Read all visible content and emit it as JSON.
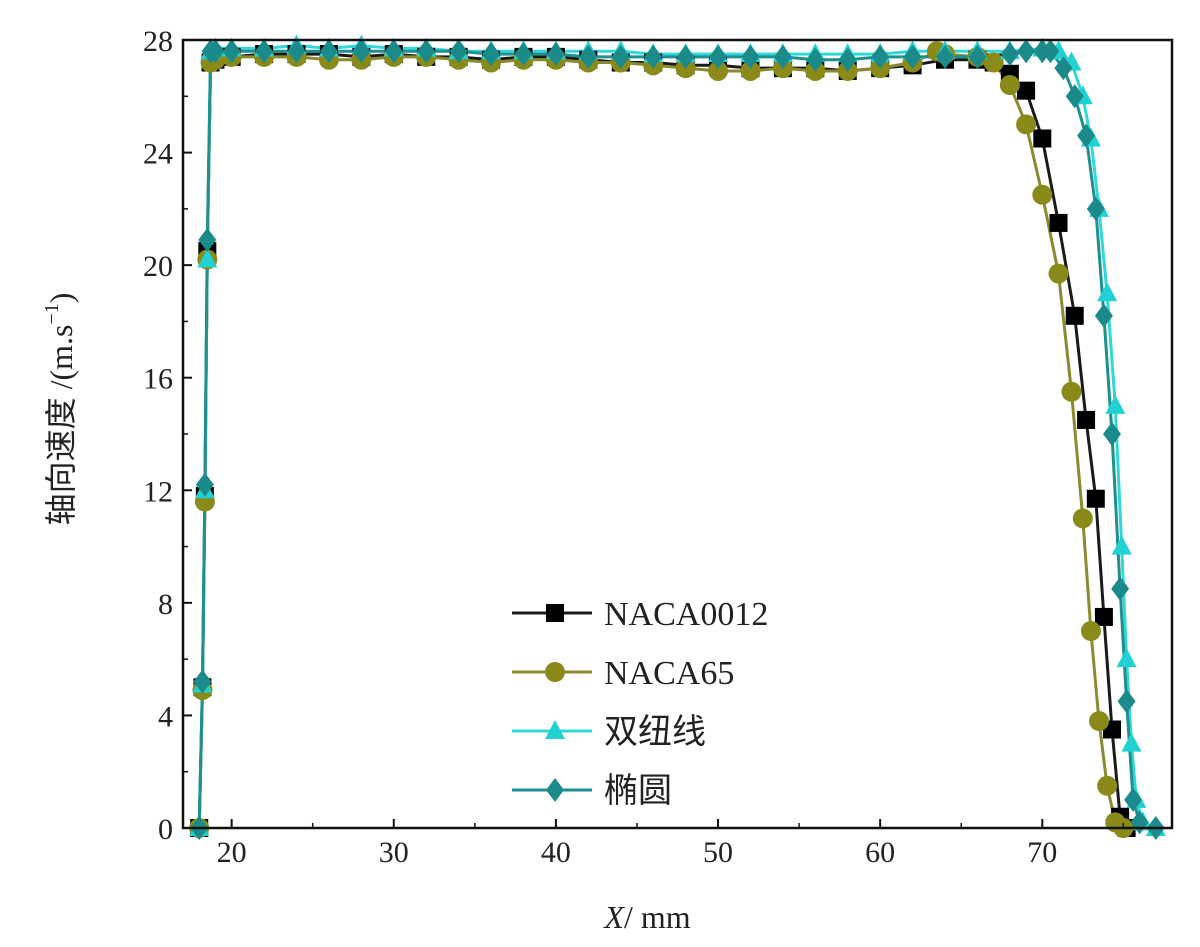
{
  "chart_data": {
    "type": "line",
    "xlabel": "X/ mm",
    "xlabel_italic": "X",
    "xlabel_unit": "/ mm",
    "ylabel": "轴向速度 /(m·s⁻¹)",
    "ylabel_text": "轴向速度 /(m.s",
    "ylabel_sup": "−1",
    "ylabel_close": ")",
    "xlim": [
      17,
      78
    ],
    "ylim": [
      0,
      28
    ],
    "xticks": [
      20,
      30,
      40,
      50,
      60,
      70
    ],
    "yticks": [
      0,
      4,
      8,
      12,
      16,
      20,
      24,
      28
    ],
    "grid": false,
    "legend_position": "lower-center",
    "series": [
      {
        "name": "NACA0012",
        "color": "#000000",
        "line_color": "#1a1a1a",
        "marker": "square",
        "points": [
          [
            18.0,
            0
          ],
          [
            18.2,
            5
          ],
          [
            18.35,
            11.8
          ],
          [
            18.5,
            20.5
          ],
          [
            18.7,
            27.2
          ],
          [
            19,
            27.3
          ],
          [
            20,
            27.4
          ],
          [
            22,
            27.5
          ],
          [
            24,
            27.5
          ],
          [
            26,
            27.5
          ],
          [
            28,
            27.4
          ],
          [
            30,
            27.5
          ],
          [
            32,
            27.4
          ],
          [
            34,
            27.4
          ],
          [
            36,
            27.3
          ],
          [
            38,
            27.4
          ],
          [
            40,
            27.4
          ],
          [
            42,
            27.3
          ],
          [
            44,
            27.2
          ],
          [
            46,
            27.2
          ],
          [
            48,
            27.1
          ],
          [
            50,
            27.1
          ],
          [
            52,
            27.0
          ],
          [
            54,
            27.0
          ],
          [
            56,
            27.0
          ],
          [
            58,
            26.9
          ],
          [
            60,
            27.0
          ],
          [
            62,
            27.1
          ],
          [
            64,
            27.3
          ],
          [
            66,
            27.3
          ],
          [
            67,
            27.2
          ],
          [
            68,
            26.8
          ],
          [
            69,
            26.2
          ],
          [
            70,
            24.5
          ],
          [
            71,
            21.5
          ],
          [
            72,
            18.2
          ],
          [
            72.7,
            14.5
          ],
          [
            73.3,
            11.7
          ],
          [
            73.8,
            7.5
          ],
          [
            74.3,
            3.5
          ],
          [
            74.8,
            0.4
          ],
          [
            75.2,
            0
          ]
        ]
      },
      {
        "name": "NACA65",
        "color": "#8a8a1a",
        "line_color": "#8a8a30",
        "marker": "circle",
        "points": [
          [
            18.0,
            0
          ],
          [
            18.2,
            4.9
          ],
          [
            18.35,
            11.6
          ],
          [
            18.5,
            20.2
          ],
          [
            18.7,
            27.2
          ],
          [
            19,
            27.3
          ],
          [
            20,
            27.4
          ],
          [
            22,
            27.4
          ],
          [
            24,
            27.4
          ],
          [
            26,
            27.3
          ],
          [
            28,
            27.3
          ],
          [
            30,
            27.4
          ],
          [
            32,
            27.4
          ],
          [
            34,
            27.3
          ],
          [
            36,
            27.2
          ],
          [
            38,
            27.3
          ],
          [
            40,
            27.3
          ],
          [
            42,
            27.2
          ],
          [
            44,
            27.2
          ],
          [
            46,
            27.1
          ],
          [
            48,
            27.0
          ],
          [
            50,
            26.9
          ],
          [
            52,
            26.9
          ],
          [
            54,
            27.0
          ],
          [
            56,
            26.9
          ],
          [
            58,
            26.9
          ],
          [
            60,
            27.0
          ],
          [
            62,
            27.2
          ],
          [
            63.5,
            27.6
          ],
          [
            64,
            27.5
          ],
          [
            66,
            27.4
          ],
          [
            67,
            27.2
          ],
          [
            68,
            26.4
          ],
          [
            69,
            25.0
          ],
          [
            70,
            22.5
          ],
          [
            71,
            19.7
          ],
          [
            71.8,
            15.5
          ],
          [
            72.5,
            11.0
          ],
          [
            73,
            7.0
          ],
          [
            73.5,
            3.8
          ],
          [
            74,
            1.5
          ],
          [
            74.5,
            0.2
          ],
          [
            75,
            0
          ]
        ]
      },
      {
        "name": "双纽线",
        "color": "#22d2d2",
        "line_color": "#30d8d8",
        "marker": "triangle",
        "points": [
          [
            18.0,
            0
          ],
          [
            18.2,
            5.1
          ],
          [
            18.35,
            12.0
          ],
          [
            18.5,
            20.2
          ],
          [
            18.7,
            27.6
          ],
          [
            19,
            27.7
          ],
          [
            20,
            27.7
          ],
          [
            22,
            27.7
          ],
          [
            24,
            27.8
          ],
          [
            26,
            27.7
          ],
          [
            28,
            27.8
          ],
          [
            30,
            27.7
          ],
          [
            32,
            27.7
          ],
          [
            34,
            27.6
          ],
          [
            36,
            27.6
          ],
          [
            38,
            27.6
          ],
          [
            40,
            27.6
          ],
          [
            42,
            27.6
          ],
          [
            44,
            27.6
          ],
          [
            46,
            27.5
          ],
          [
            48,
            27.5
          ],
          [
            50,
            27.5
          ],
          [
            52,
            27.5
          ],
          [
            54,
            27.5
          ],
          [
            56,
            27.5
          ],
          [
            58,
            27.5
          ],
          [
            60,
            27.5
          ],
          [
            62,
            27.6
          ],
          [
            64,
            27.6
          ],
          [
            66,
            27.6
          ],
          [
            68,
            27.6
          ],
          [
            70,
            27.7
          ],
          [
            71,
            27.6
          ],
          [
            71.8,
            27.2
          ],
          [
            72.5,
            26.0
          ],
          [
            73,
            24.5
          ],
          [
            73.5,
            22.0
          ],
          [
            74,
            19.0
          ],
          [
            74.5,
            15.0
          ],
          [
            74.9,
            10.0
          ],
          [
            75.2,
            6.0
          ],
          [
            75.5,
            3.0
          ],
          [
            75.8,
            1.0
          ],
          [
            76.2,
            0.2
          ],
          [
            77,
            0
          ]
        ]
      },
      {
        "name": "椭圆",
        "color": "#1a8a8a",
        "line_color": "#1f9090",
        "marker": "diamond",
        "points": [
          [
            18.0,
            0
          ],
          [
            18.2,
            5.2
          ],
          [
            18.35,
            12.2
          ],
          [
            18.5,
            20.9
          ],
          [
            18.7,
            27.6
          ],
          [
            19,
            27.6
          ],
          [
            20,
            27.6
          ],
          [
            22,
            27.6
          ],
          [
            24,
            27.6
          ],
          [
            26,
            27.6
          ],
          [
            28,
            27.6
          ],
          [
            30,
            27.6
          ],
          [
            32,
            27.6
          ],
          [
            34,
            27.6
          ],
          [
            36,
            27.5
          ],
          [
            38,
            27.5
          ],
          [
            40,
            27.5
          ],
          [
            42,
            27.4
          ],
          [
            44,
            27.4
          ],
          [
            46,
            27.4
          ],
          [
            48,
            27.4
          ],
          [
            50,
            27.4
          ],
          [
            52,
            27.4
          ],
          [
            54,
            27.4
          ],
          [
            56,
            27.3
          ],
          [
            58,
            27.3
          ],
          [
            60,
            27.4
          ],
          [
            62,
            27.4
          ],
          [
            64,
            27.4
          ],
          [
            66,
            27.4
          ],
          [
            68,
            27.5
          ],
          [
            69,
            27.6
          ],
          [
            70,
            27.6
          ],
          [
            70.5,
            27.6
          ],
          [
            71.3,
            27.0
          ],
          [
            72,
            26.0
          ],
          [
            72.7,
            24.6
          ],
          [
            73.3,
            22.0
          ],
          [
            73.8,
            18.2
          ],
          [
            74.3,
            14.0
          ],
          [
            74.8,
            8.5
          ],
          [
            75.2,
            4.5
          ],
          [
            75.6,
            1.0
          ],
          [
            76,
            0.2
          ],
          [
            77,
            0
          ]
        ]
      }
    ]
  }
}
